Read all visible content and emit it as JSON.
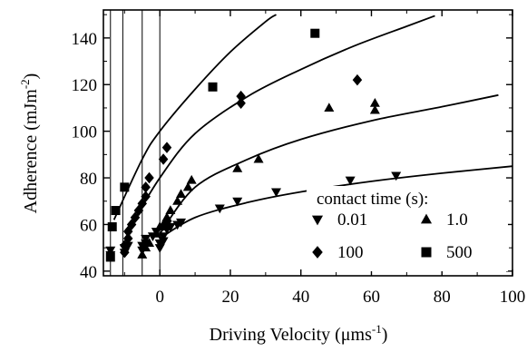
{
  "chart_data": {
    "type": "scatter",
    "xlabel": "Driving Velocity (μms",
    "xlabel_sup": "-1",
    "xlabel_tail": ")",
    "ylabel": "Adherence (mJm",
    "ylabel_sup": "-2",
    "ylabel_tail": ")",
    "xlim": [
      -16,
      100
    ],
    "ylim": [
      38,
      152
    ],
    "x_ticks": [
      0,
      20,
      40,
      60,
      80,
      100
    ],
    "x_tick_labels": [
      "0",
      "20",
      "40",
      "60",
      "80",
      "100"
    ],
    "y_ticks": [
      40,
      60,
      80,
      100,
      120,
      140
    ],
    "y_tick_labels": [
      "40",
      "60",
      "80",
      "100",
      "120",
      "140"
    ],
    "vertical_lines": [
      -14,
      -10.5,
      -5,
      0
    ],
    "legend": {
      "title": "contact time (s):",
      "placement": "bottom-right"
    },
    "series": [
      {
        "name": "0.01",
        "marker": "triangle-down",
        "points": [
          [
            -14,
            47
          ],
          [
            -14,
            49
          ],
          [
            -10,
            48
          ],
          [
            -10,
            50
          ],
          [
            -9,
            51
          ],
          [
            -5,
            49
          ],
          [
            -5,
            51
          ],
          [
            -4,
            52
          ],
          [
            -4,
            54
          ],
          [
            -2,
            55
          ],
          [
            -1,
            57
          ],
          [
            0,
            50
          ],
          [
            0,
            52
          ],
          [
            1,
            53
          ],
          [
            1,
            55
          ],
          [
            2,
            58
          ],
          [
            2,
            60
          ],
          [
            3,
            59
          ],
          [
            5,
            60
          ],
          [
            6,
            61
          ],
          [
            17,
            67
          ],
          [
            22,
            70
          ],
          [
            33,
            74
          ],
          [
            54,
            79
          ],
          [
            67,
            81
          ]
        ],
        "curve": [
          [
            0,
            54
          ],
          [
            10,
            63
          ],
          [
            25,
            69.5
          ],
          [
            40,
            74
          ],
          [
            60,
            78.5
          ],
          [
            80,
            82
          ],
          [
            100,
            85
          ]
        ]
      },
      {
        "name": "1.0",
        "marker": "triangle-up",
        "points": [
          [
            -5,
            47
          ],
          [
            -4,
            50
          ],
          [
            -3,
            52
          ],
          [
            -1,
            56
          ],
          [
            0,
            59
          ],
          [
            1,
            60
          ],
          [
            2,
            63
          ],
          [
            3,
            66
          ],
          [
            5,
            70
          ],
          [
            6,
            73
          ],
          [
            8,
            76
          ],
          [
            9,
            79
          ],
          [
            22,
            84
          ],
          [
            28,
            88
          ],
          [
            48,
            110
          ],
          [
            61,
            109
          ],
          [
            61,
            112
          ]
        ],
        "curve": [
          [
            0,
            56
          ],
          [
            10,
            76
          ],
          [
            25,
            88
          ],
          [
            40,
            96.5
          ],
          [
            60,
            104.5
          ],
          [
            80,
            110.5
          ],
          [
            96,
            115.5
          ]
        ]
      },
      {
        "name": "100",
        "marker": "diamond",
        "points": [
          [
            -10,
            48
          ],
          [
            -10,
            51
          ],
          [
            -9,
            54
          ],
          [
            -9,
            57
          ],
          [
            -8,
            60
          ],
          [
            -7,
            63
          ],
          [
            -6,
            66
          ],
          [
            -5,
            69
          ],
          [
            -4,
            72
          ],
          [
            -4,
            76
          ],
          [
            -3,
            80
          ],
          [
            1,
            88
          ],
          [
            2,
            93
          ],
          [
            23,
            112
          ],
          [
            23,
            115
          ],
          [
            56,
            122
          ]
        ],
        "curve": [
          [
            -8,
            60
          ],
          [
            0,
            80
          ],
          [
            10,
            99
          ],
          [
            25,
            115
          ],
          [
            40,
            126.5
          ],
          [
            55,
            136.5
          ],
          [
            70,
            145
          ],
          [
            78,
            149.5
          ]
        ]
      },
      {
        "name": "500",
        "marker": "square",
        "points": [
          [
            -14,
            46
          ],
          [
            -13.5,
            59
          ],
          [
            -12.5,
            66
          ],
          [
            -10,
            76
          ],
          [
            15,
            119
          ],
          [
            44,
            142
          ]
        ],
        "curve": [
          [
            -13,
            62
          ],
          [
            -5,
            88
          ],
          [
            0,
            100
          ],
          [
            10,
            118
          ],
          [
            20,
            134
          ],
          [
            30,
            147
          ],
          [
            33,
            150
          ]
        ]
      }
    ]
  }
}
